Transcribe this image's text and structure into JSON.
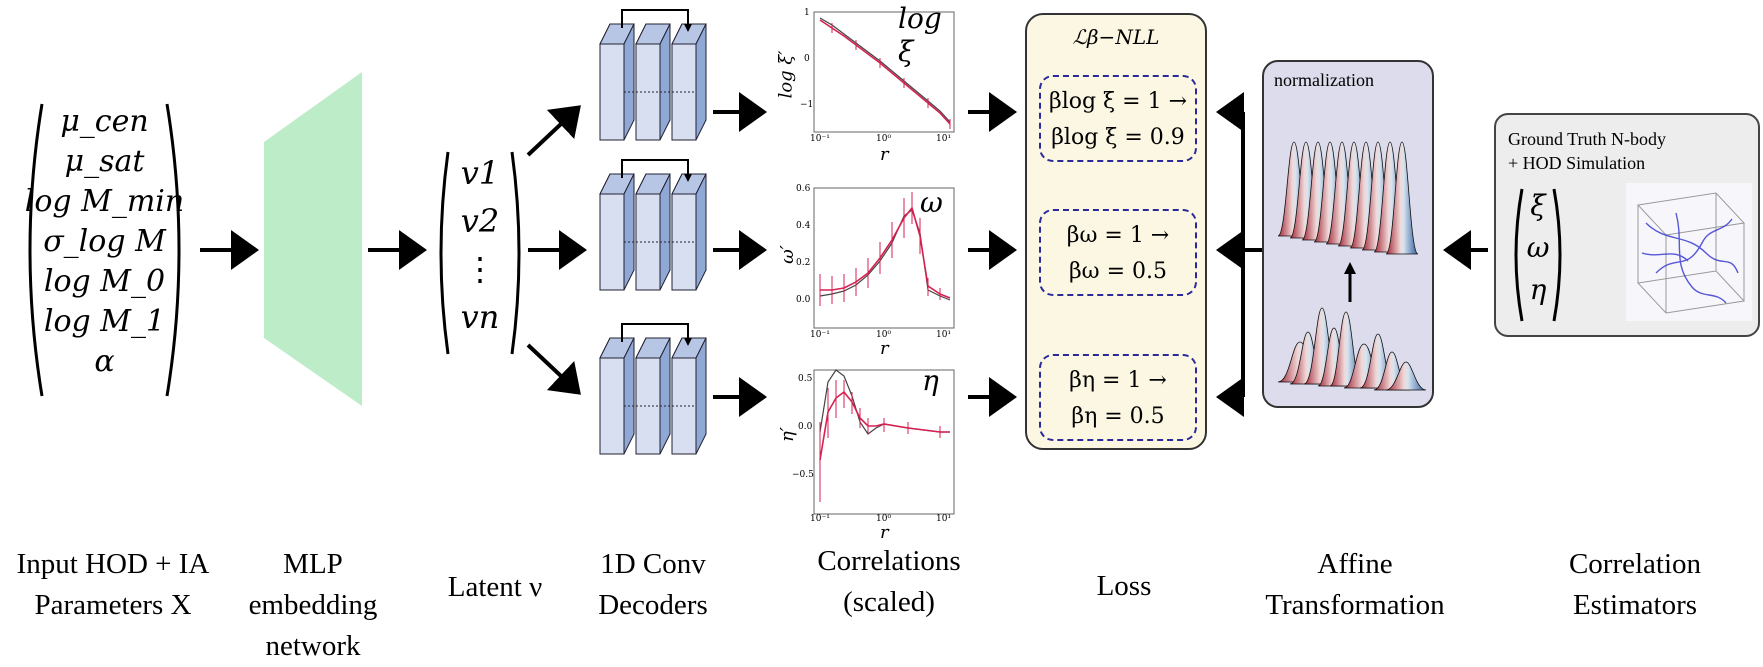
{
  "input_params": [
    "μ_cen",
    "μ_sat",
    "log M_min",
    "σ_log M",
    "log M_0",
    "log M_1",
    "α"
  ],
  "latent": [
    "v1",
    "v2",
    "⋮",
    "vn"
  ],
  "plots": [
    {
      "title": "log ξ",
      "ylabel": "log ξ′",
      "xlabel": "r",
      "yticks": [
        "1",
        "0",
        "−1"
      ],
      "xticks": [
        "10⁻¹",
        "10⁰",
        "10¹"
      ]
    },
    {
      "title": "ω",
      "ylabel": "ω′",
      "xlabel": "r",
      "yticks": [
        "0.6",
        "0.4",
        "0.2",
        "0.0"
      ],
      "xticks": [
        "10⁻¹",
        "10⁰",
        "10¹"
      ]
    },
    {
      "title": "η",
      "ylabel": "η′",
      "xlabel": "r",
      "yticks": [
        "0.5",
        "0.0",
        "−0.5"
      ],
      "xticks": [
        "10⁻¹",
        "10⁰",
        "10¹"
      ]
    }
  ],
  "loss": {
    "title": "ℒβ−NLL",
    "boxes": [
      {
        "line1": "βlog ξ = 1 →",
        "line2": "βlog ξ = 0.9"
      },
      {
        "line1": "βω = 1 →",
        "line2": "βω = 0.5"
      },
      {
        "line1": "βη = 1 →",
        "line2": "βη = 0.5"
      }
    ]
  },
  "normalization_label": "normalization",
  "ground_truth": {
    "line1": "Ground Truth N-body",
    "line2": "+ HOD Simulation",
    "vars": [
      "ξ",
      "ω",
      "η"
    ]
  },
  "captions": {
    "input": [
      "Input HOD + IA",
      "Parameters X"
    ],
    "mlp": [
      "MLP",
      "embedding",
      "network"
    ],
    "latent": "Latent ν",
    "decoders": [
      "1D Conv",
      "Decoders"
    ],
    "correlations": [
      "Correlations",
      "(scaled)"
    ],
    "loss": "Loss",
    "affine": [
      "Affine",
      "Transformation"
    ],
    "estimators": [
      "Correlation",
      "Estimators"
    ]
  },
  "colors": {
    "mlp": "#bdecc9",
    "conv_front": "#d7dff0",
    "conv_side": "#8fa8d6",
    "loss_bg": "#fbf7e2",
    "norm_bg": "#dcdcec",
    "gt_bg": "#ededed",
    "dash": "#2a2a9a",
    "curve_red": "#d62050"
  }
}
